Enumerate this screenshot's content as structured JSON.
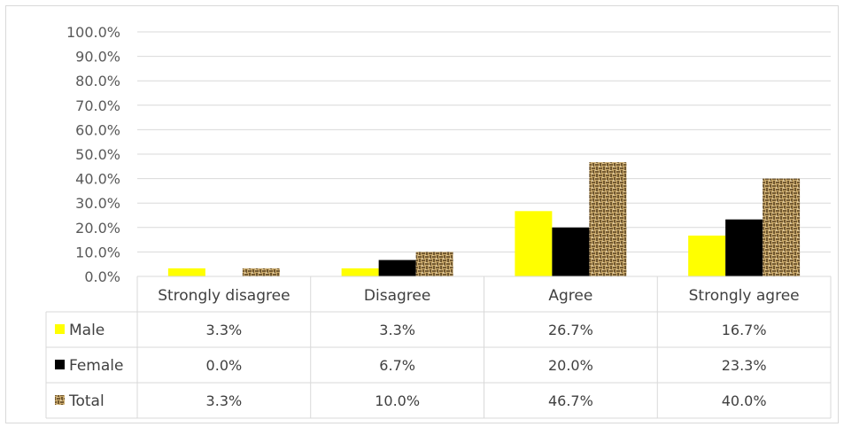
{
  "chart_data": {
    "type": "bar",
    "categories": [
      "Strongly disagree",
      "Disagree",
      "Agree",
      "Strongly agree"
    ],
    "series": [
      {
        "name": "Male",
        "values": [
          3.3,
          3.3,
          26.7,
          16.7
        ],
        "labels": [
          "3.3%",
          "3.3%",
          "26.7%",
          "16.7%"
        ],
        "color": "#ffff00",
        "pattern": "solid"
      },
      {
        "name": "Female",
        "values": [
          0.0,
          6.7,
          20.0,
          23.3
        ],
        "labels": [
          "0.0%",
          "6.7%",
          "20.0%",
          "23.3%"
        ],
        "color": "#000000",
        "pattern": "solid"
      },
      {
        "name": "Total",
        "values": [
          3.3,
          10.0,
          46.7,
          40.0
        ],
        "labels": [
          "3.3%",
          "10.0%",
          "46.7%",
          "40.0%"
        ],
        "color": "#c8a86b",
        "pattern": "woven"
      }
    ],
    "yticks": [
      "0.0%",
      "10.0%",
      "20.0%",
      "30.0%",
      "40.0%",
      "50.0%",
      "60.0%",
      "70.0%",
      "80.0%",
      "90.0%",
      "100.0%"
    ],
    "ylim": [
      0,
      100
    ],
    "grid": true,
    "legend": "data-table"
  }
}
